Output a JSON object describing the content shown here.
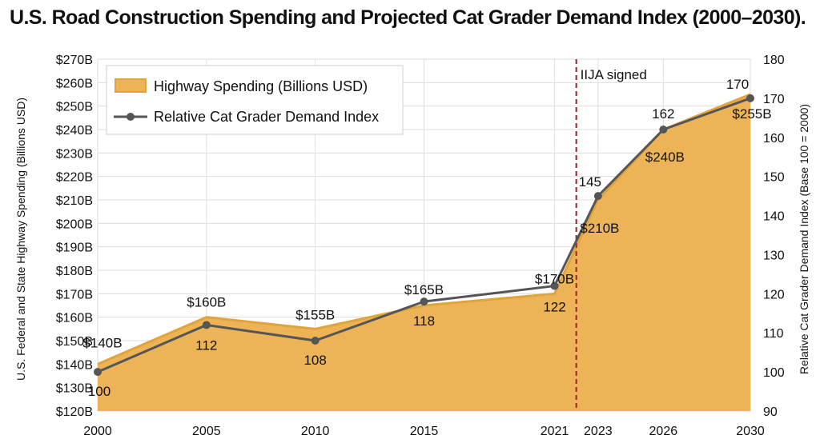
{
  "chart_data": {
    "type": "area",
    "title": "U.S. Road Construction Spending and Projected Cat Grader Demand Index (2000–2030).",
    "categories": [
      "2000",
      "2005",
      "2010",
      "2015",
      "2021",
      "2023",
      "2026",
      "2030"
    ],
    "series": [
      {
        "name": "Highway Spending (Billions USD)",
        "type": "area",
        "axis": "left",
        "values": [
          140,
          160,
          155,
          165,
          170,
          210,
          240,
          255
        ],
        "labels": [
          "$140B",
          "$160B",
          "$155B",
          "$165B",
          "$170B",
          "$210B",
          "$240B",
          "$255B"
        ],
        "color": "#EDB457",
        "edge_color": "#E0A43A"
      },
      {
        "name": "Relative Cat Grader Demand Index",
        "type": "line",
        "axis": "right",
        "values": [
          100,
          112,
          108,
          118,
          122,
          145,
          162,
          170
        ],
        "labels": [
          "100",
          "112",
          "108",
          "118",
          "122",
          "145",
          "162",
          "170"
        ],
        "color": "#555555"
      }
    ],
    "y_left": {
      "label": "U.S. Federal and State Highway Spending (Billions USD)",
      "range": [
        120,
        270
      ],
      "ticks": [
        "$120B",
        "$130B",
        "$140B",
        "$150B",
        "$160B",
        "$170B",
        "$180B",
        "$190B",
        "$200B",
        "$210B",
        "$220B",
        "$230B",
        "$240B",
        "$250B",
        "$260B",
        "$270B"
      ]
    },
    "y_right": {
      "label": "Relative Cat Grader Demand Index (Base 100 = 2000)",
      "range": [
        90,
        180
      ],
      "ticks": [
        "90",
        "100",
        "110",
        "120",
        "130",
        "140",
        "150",
        "160",
        "170",
        "180"
      ]
    },
    "annotation": {
      "text": "IIJA signed",
      "x": 2022,
      "color": "#A0202A"
    },
    "x_scale": "year",
    "grid": true,
    "legend_position": "top-left"
  }
}
